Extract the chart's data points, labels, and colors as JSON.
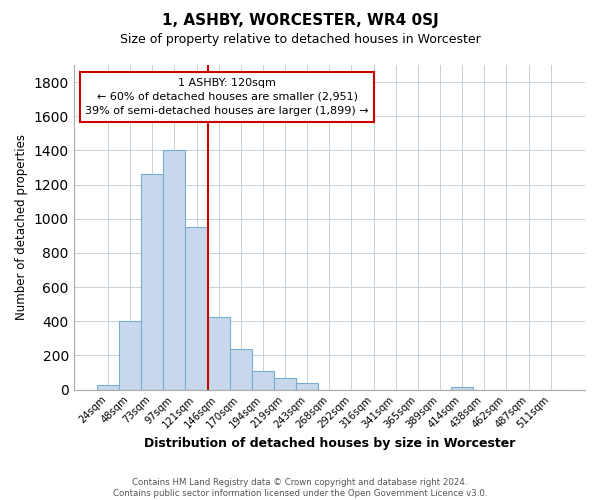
{
  "title": "1, ASHBY, WORCESTER, WR4 0SJ",
  "subtitle": "Size of property relative to detached houses in Worcester",
  "xlabel": "Distribution of detached houses by size in Worcester",
  "ylabel": "Number of detached properties",
  "bar_labels": [
    "24sqm",
    "48sqm",
    "73sqm",
    "97sqm",
    "121sqm",
    "146sqm",
    "170sqm",
    "194sqm",
    "219sqm",
    "243sqm",
    "268sqm",
    "292sqm",
    "316sqm",
    "341sqm",
    "365sqm",
    "389sqm",
    "414sqm",
    "438sqm",
    "462sqm",
    "487sqm",
    "511sqm"
  ],
  "bar_values": [
    25,
    400,
    1260,
    1400,
    950,
    425,
    235,
    110,
    65,
    40,
    0,
    0,
    0,
    0,
    0,
    0,
    15,
    0,
    0,
    0,
    0
  ],
  "bar_color": "#c8d8ec",
  "bar_edge_color": "#7aaed0",
  "vline_index": 4,
  "vline_color": "#cc0000",
  "ylim": [
    0,
    1900
  ],
  "yticks": [
    0,
    200,
    400,
    600,
    800,
    1000,
    1200,
    1400,
    1600,
    1800
  ],
  "annotation_title": "1 ASHBY: 120sqm",
  "annotation_line1": "← 60% of detached houses are smaller (2,951)",
  "annotation_line2": "39% of semi-detached houses are larger (1,899) →",
  "annotation_box_color": "#ffffff",
  "annotation_box_edge": "#cc0000",
  "footer_line1": "Contains HM Land Registry data © Crown copyright and database right 2024.",
  "footer_line2": "Contains public sector information licensed under the Open Government Licence v3.0.",
  "background_color": "#ffffff",
  "grid_color": "#c8d0d8"
}
